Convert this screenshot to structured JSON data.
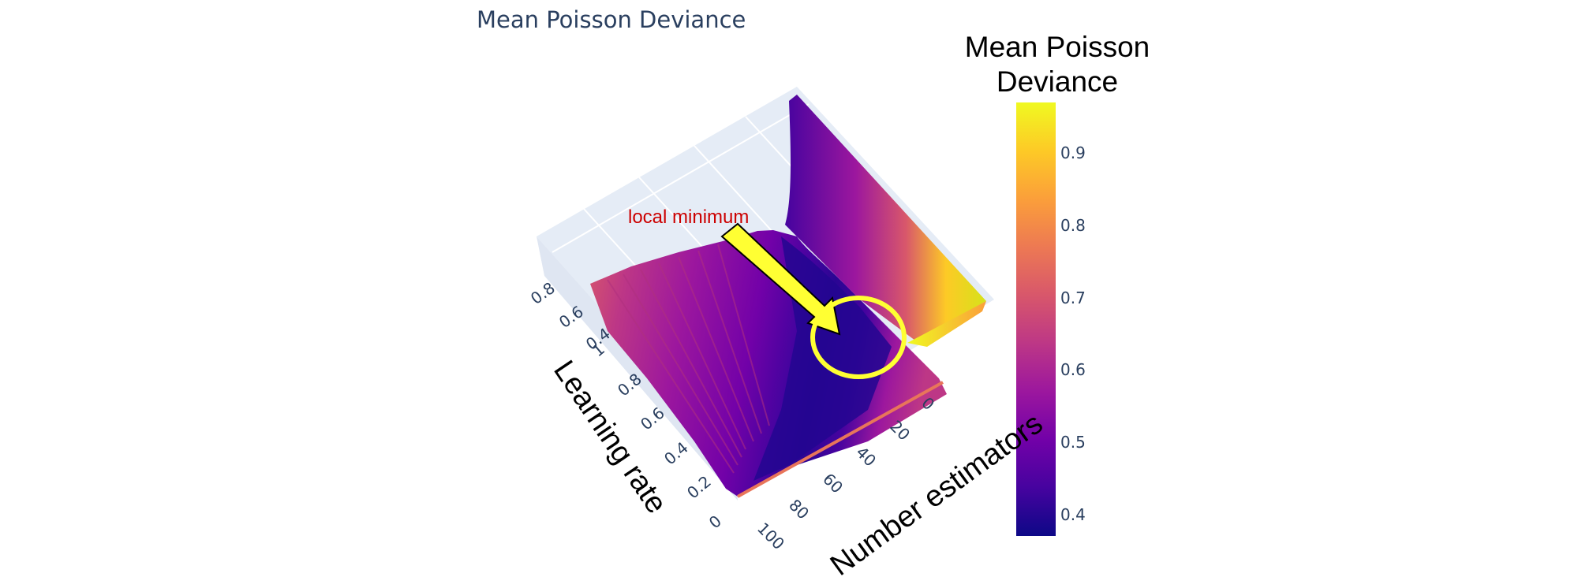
{
  "chart_data": {
    "type": "surface",
    "title": "Mean Poisson Deviance",
    "colorbar": {
      "title_lines": [
        "Mean Poisson",
        "Deviance"
      ],
      "ticks": [
        0.4,
        0.5,
        0.6,
        0.7,
        0.8,
        0.9
      ],
      "range": [
        0.37,
        0.97
      ],
      "colorscale": [
        "#0d0887",
        "#46039f",
        "#7201a8",
        "#9c179e",
        "#bd3786",
        "#d8576b",
        "#ed7953",
        "#fb9f3a",
        "#fdca26",
        "#f0f921"
      ]
    },
    "x_axis": {
      "title": "Number estimators",
      "ticks": [
        "0",
        "20",
        "40",
        "60",
        "80",
        "100"
      ],
      "range": [
        0,
        100
      ]
    },
    "y_axis": {
      "title": "Learning rate",
      "ticks": [
        "0",
        "0.2",
        "0.4",
        "0.6",
        "0.8",
        "1"
      ],
      "range": [
        0,
        1
      ]
    },
    "z_axis": {
      "ticks": [
        "0.4",
        "0.6",
        "0.8"
      ]
    },
    "annotation": {
      "text": "local minimum",
      "text_color": "#cc0000",
      "arrow_color": "#ffff33",
      "circle_color": "#ffff33"
    },
    "surface_summary": {
      "min_value": 0.37,
      "max_value": 0.97
    }
  }
}
